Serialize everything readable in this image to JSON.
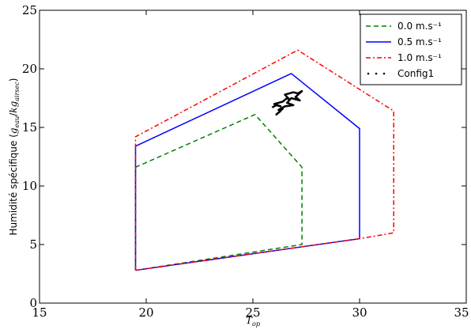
{
  "chart_data": {
    "type": "line",
    "xlabel": "T_op",
    "ylabel": "Humidité spécifique (g_eau/kg_airsec)",
    "xlim": [
      15,
      35
    ],
    "ylim": [
      0,
      25
    ],
    "xticks": [
      15,
      20,
      25,
      30,
      35
    ],
    "yticks": [
      0,
      5,
      10,
      15,
      20,
      25
    ],
    "grid": false,
    "legend_position": "top-right",
    "series": [
      {
        "name": "0.0 m.s⁻¹",
        "style": "dashed",
        "color": "#008000",
        "x": [
          19.5,
          19.5,
          25.1,
          27.3,
          27.3,
          19.5
        ],
        "y": [
          2.8,
          11.6,
          16.1,
          11.6,
          5.0,
          2.8
        ]
      },
      {
        "name": "0.5 m.s⁻¹",
        "style": "solid",
        "color": "#0000ff",
        "x": [
          19.5,
          19.5,
          26.8,
          30.0,
          30.0,
          19.5
        ],
        "y": [
          2.8,
          13.4,
          19.6,
          14.9,
          5.5,
          2.8
        ]
      },
      {
        "name": "1.0 m.s⁻¹",
        "style": "dashdot",
        "color": "#ff0000",
        "x": [
          19.5,
          19.5,
          27.1,
          31.6,
          31.6,
          30.0,
          19.5
        ],
        "y": [
          2.8,
          14.2,
          21.6,
          16.4,
          6.0,
          5.5,
          2.8
        ]
      },
      {
        "name": "Config1",
        "style": "dotted",
        "color": "#000000",
        "x": [
          25.9,
          26.1,
          26.3,
          26.0,
          26.4,
          26.6,
          26.7,
          26.5,
          26.9,
          27.1,
          27.3,
          27.0,
          27.2,
          26.8,
          26.6,
          26.9,
          26.5,
          26.2,
          26.4,
          26.1,
          26.3
        ],
        "y": [
          16.7,
          16.9,
          16.8,
          17.0,
          17.2,
          17.5,
          17.4,
          17.8,
          18.0,
          17.9,
          18.1,
          17.6,
          17.3,
          17.5,
          17.1,
          16.9,
          16.8,
          16.5,
          16.6,
          16.1,
          16.4
        ]
      }
    ]
  }
}
